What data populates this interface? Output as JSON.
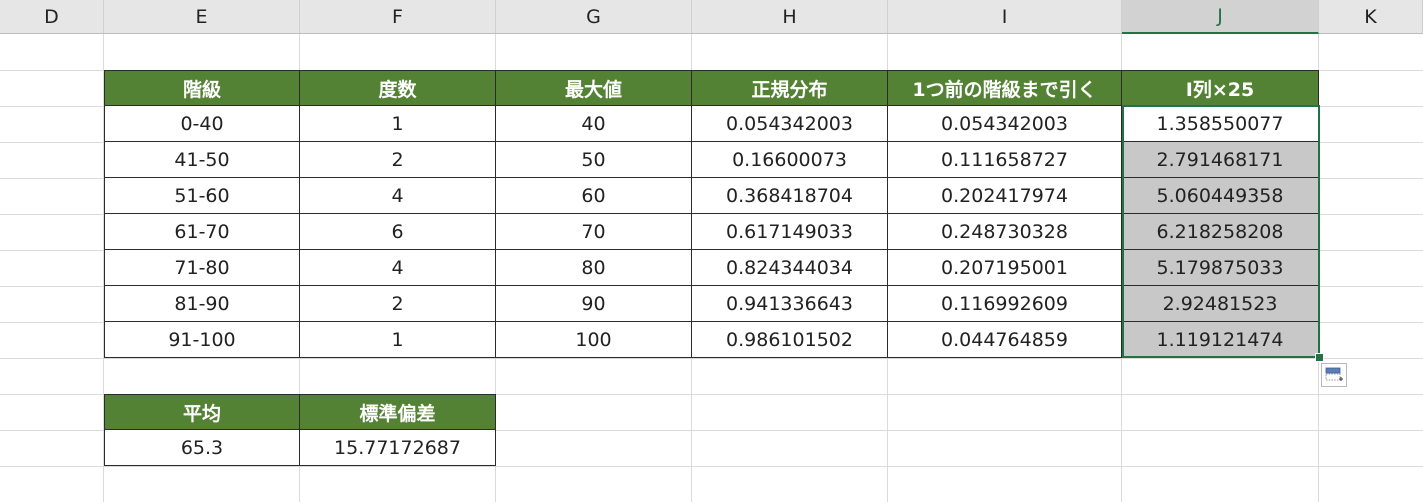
{
  "columns": [
    "D",
    "E",
    "F",
    "G",
    "H",
    "I",
    "J",
    "K"
  ],
  "selected_column": "J",
  "main_table": {
    "headers": [
      "階級",
      "度数",
      "最大値",
      "正規分布",
      "1つ前の階級まで引く",
      "I列×25"
    ],
    "rows": [
      [
        "0-40",
        "1",
        "40",
        "0.054342003",
        "0.054342003",
        "1.358550077"
      ],
      [
        "41-50",
        "2",
        "50",
        "0.16600073",
        "0.111658727",
        "2.791468171"
      ],
      [
        "51-60",
        "4",
        "60",
        "0.368418704",
        "0.202417974",
        "5.060449358"
      ],
      [
        "61-70",
        "6",
        "70",
        "0.617149033",
        "0.248730328",
        "6.218258208"
      ],
      [
        "71-80",
        "4",
        "80",
        "0.824344034",
        "0.207195001",
        "5.179875033"
      ],
      [
        "81-90",
        "2",
        "90",
        "0.941336643",
        "0.116992609",
        "2.92481523"
      ],
      [
        "91-100",
        "1",
        "100",
        "0.986101502",
        "0.044764859",
        "1.119121474"
      ]
    ]
  },
  "stats_table": {
    "headers": [
      "平均",
      "標準偏差"
    ],
    "values": [
      "65.3",
      "15.77172687"
    ]
  },
  "colors": {
    "header_fill": "#548235",
    "selection": "#217346",
    "highlight_fill": "#c8c8c8"
  },
  "icons": {
    "quick_analysis": "quick-analysis-icon"
  }
}
